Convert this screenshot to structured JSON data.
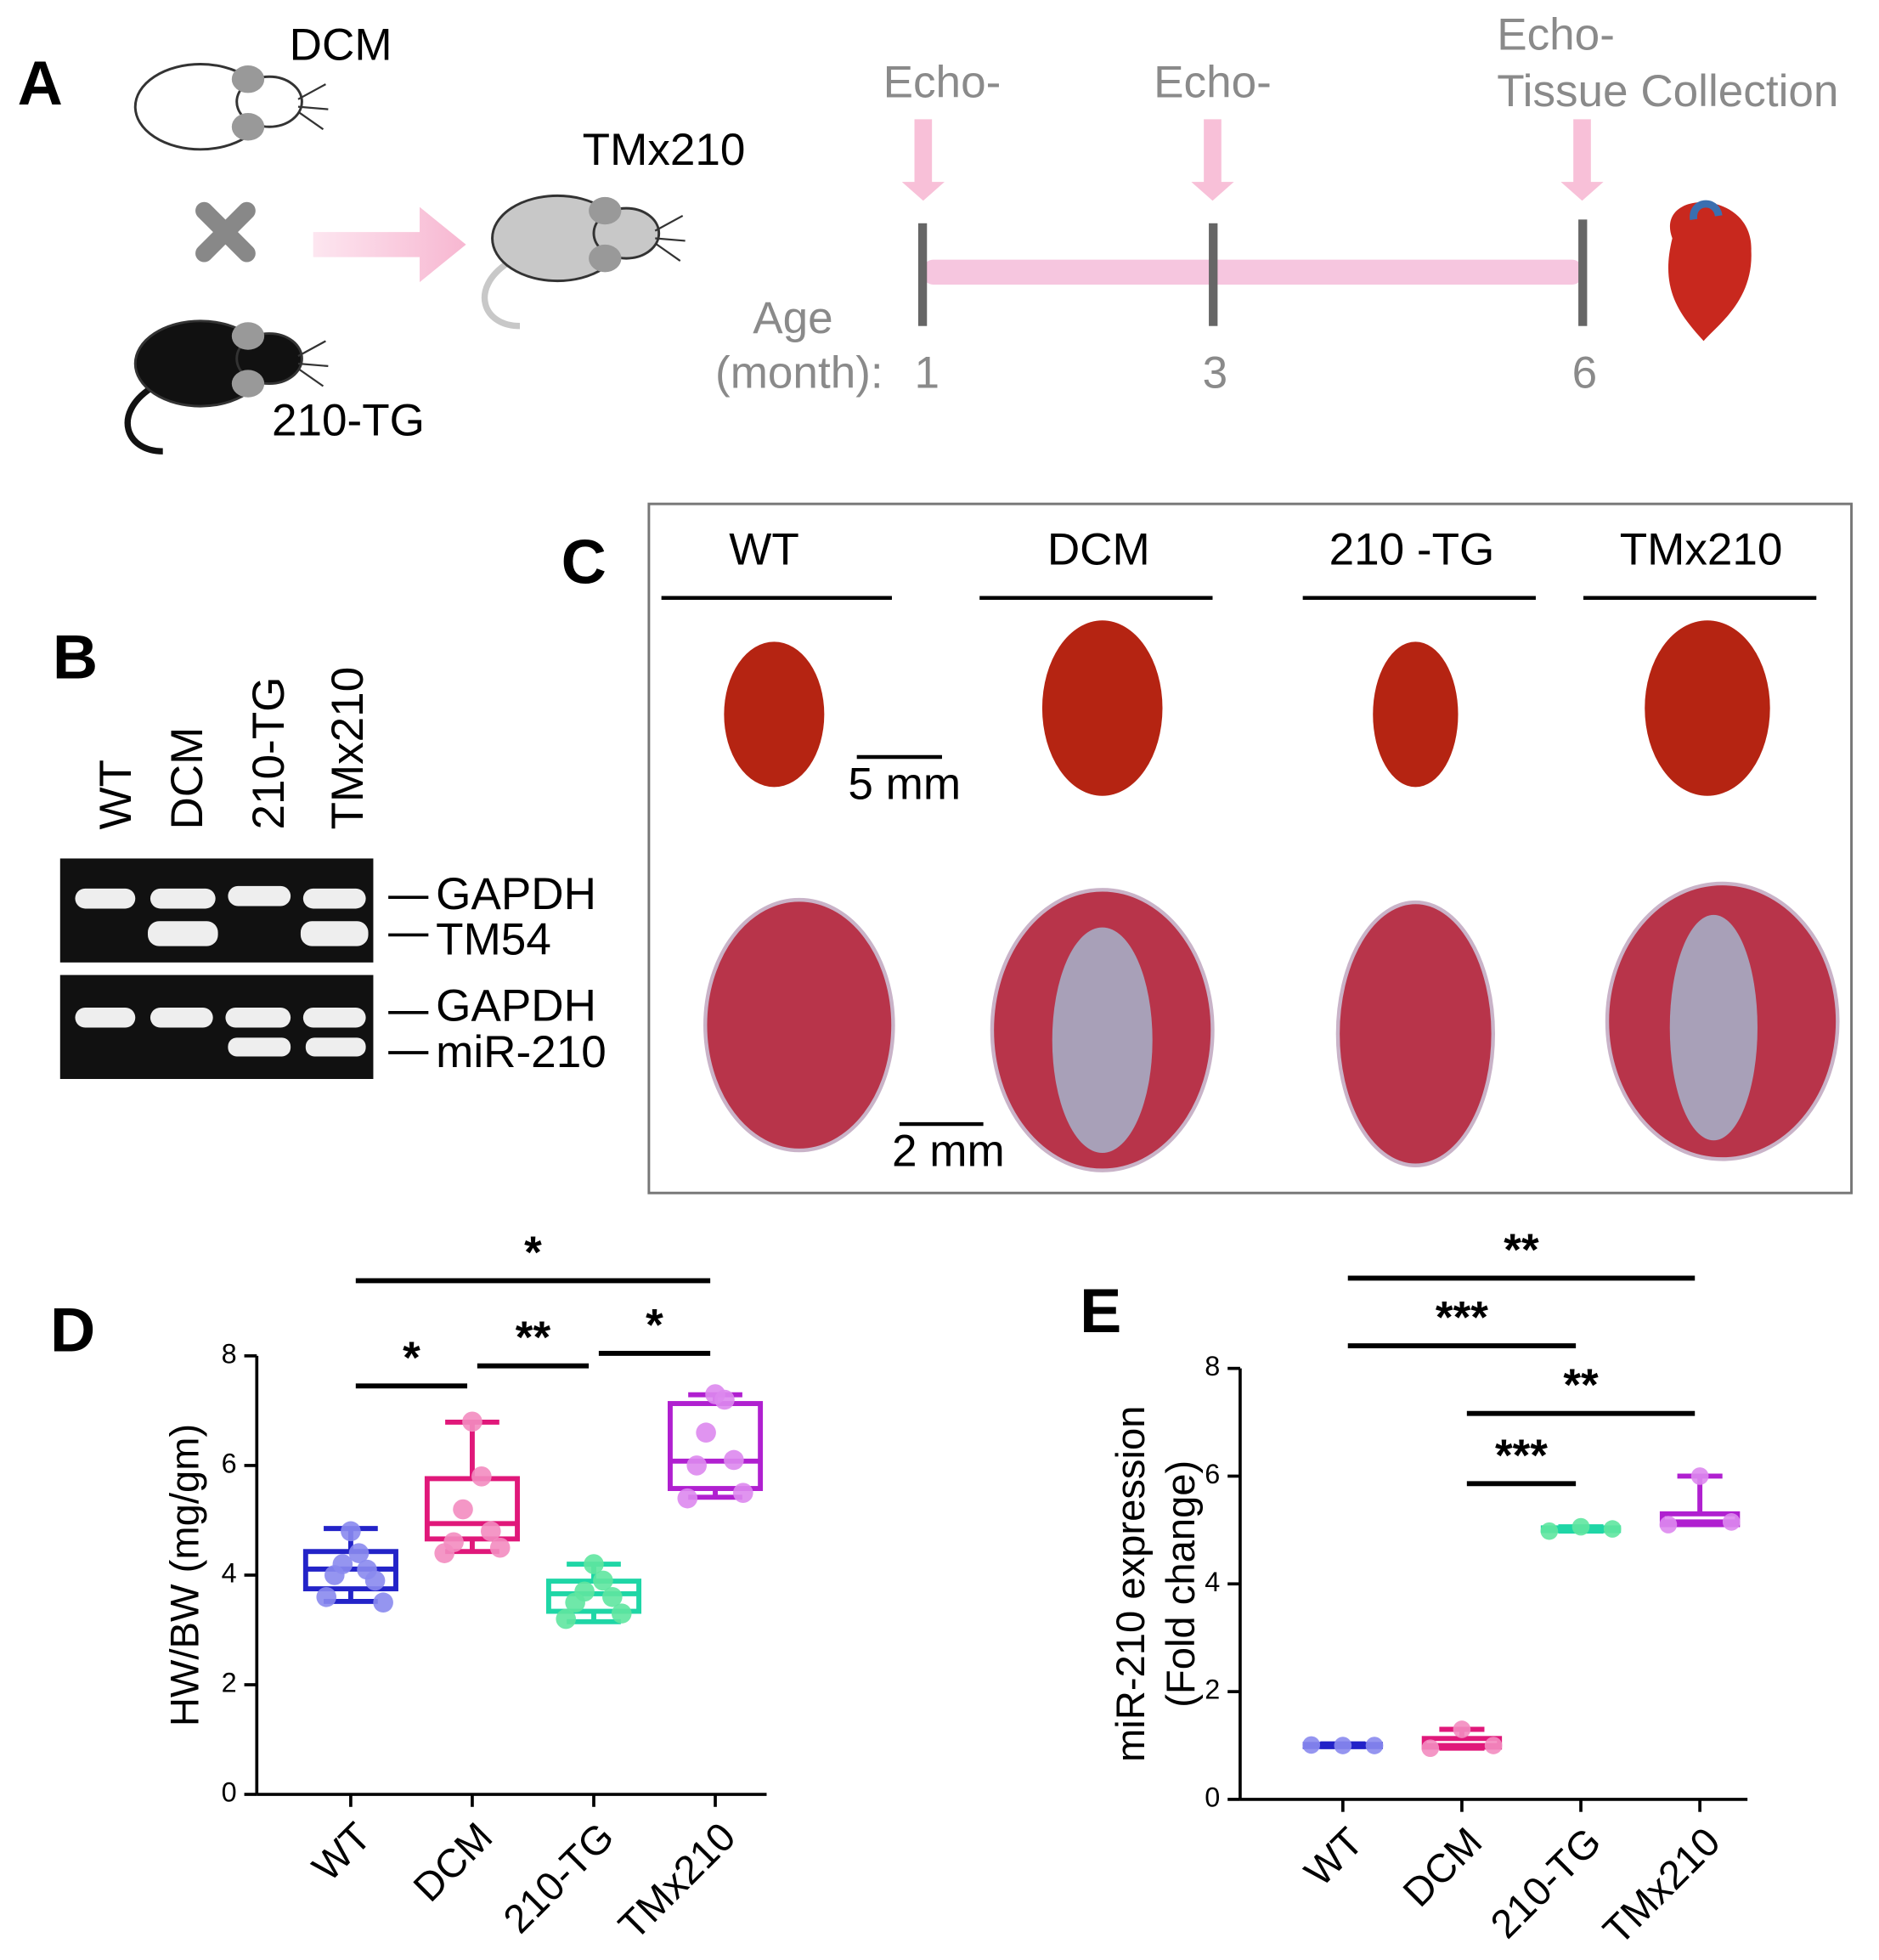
{
  "panel_labels": [
    "A",
    "B",
    "C",
    "D",
    "E"
  ],
  "panel_a": {
    "parents": [
      "DCM",
      "210-TG"
    ],
    "offspring": "TMx210",
    "echo_labels": [
      "Echo-",
      "Echo-",
      "Echo-"
    ],
    "final_label": "Tissue Collection",
    "age_label": [
      "Age",
      "(month):"
    ],
    "ages": [
      "1",
      "3",
      "6"
    ]
  },
  "panel_b": {
    "lanes": [
      "WT",
      "DCM",
      "210-TG",
      "TMx210"
    ],
    "gel_top_labels": [
      "GAPDH",
      "TM54"
    ],
    "gel_bottom_labels": [
      "GAPDH",
      "miR-210"
    ]
  },
  "panel_c": {
    "groups": [
      "WT",
      "DCM",
      "210 -TG",
      "TMx210"
    ],
    "scale_bars": [
      "5 mm",
      "2 mm"
    ]
  },
  "chart_data": [
    {
      "type": "box",
      "y_label": [
        "HW/BW (mg/gm)"
      ],
      "categories": [
        "WT",
        "DCM",
        "210-TG",
        "TMx210"
      ],
      "ylim": [
        0,
        8
      ],
      "yticks": [
        0,
        2,
        4,
        6,
        8
      ],
      "series": [
        {
          "color": "#2323c8",
          "point_color": "#8a8aee",
          "min": 3.52,
          "q1": 3.75,
          "median": 4.11,
          "q3": 4.43,
          "max": 4.85,
          "points": [
            4.8,
            4.4,
            4.2,
            4.1,
            4.0,
            3.9,
            3.6,
            3.5
          ]
        },
        {
          "color": "#e0187a",
          "point_color": "#f38cc0",
          "min": 4.43,
          "q1": 4.66,
          "median": 4.94,
          "q3": 5.76,
          "max": 6.79,
          "points": [
            6.8,
            5.8,
            5.2,
            4.8,
            4.6,
            4.5,
            4.4
          ]
        },
        {
          "color": "#1fd6a6",
          "point_color": "#5fe5a0",
          "min": 3.15,
          "q1": 3.34,
          "median": 3.66,
          "q3": 3.89,
          "max": 4.2,
          "points": [
            4.2,
            3.9,
            3.7,
            3.6,
            3.5,
            3.3,
            3.2
          ]
        },
        {
          "color": "#b020d0",
          "point_color": "#dd88ee",
          "min": 5.42,
          "q1": 5.58,
          "median": 6.08,
          "q3": 7.13,
          "max": 7.29,
          "points": [
            7.3,
            7.2,
            6.6,
            6.1,
            6.0,
            5.5,
            5.4
          ]
        }
      ],
      "significance": [
        {
          "groups": [
            "WT",
            "TMx210"
          ],
          "label": "*"
        },
        {
          "groups": [
            "WT",
            "DCM"
          ],
          "label": "*"
        },
        {
          "groups": [
            "DCM",
            "210-TG"
          ],
          "label": "**"
        },
        {
          "groups": [
            "210-TG",
            "TMx210"
          ],
          "label": "*"
        }
      ]
    },
    {
      "type": "box",
      "y_label": [
        "miR-210 expression",
        "(Fold change)"
      ],
      "categories": [
        "WT",
        "DCM",
        "210-TG",
        "TMx210"
      ],
      "ylim": [
        0,
        8
      ],
      "yticks": [
        0,
        2,
        4,
        6,
        8
      ],
      "series": [
        {
          "color": "#2323c8",
          "point_color": "#8a8aee",
          "min": 0.98,
          "q1": 0.98,
          "median": 1.0,
          "q3": 1.02,
          "max": 1.03,
          "points": [
            1.0,
            1.0,
            1.01
          ]
        },
        {
          "color": "#e0187a",
          "point_color": "#f38cc0",
          "min": 0.95,
          "q1": 0.97,
          "median": 1.0,
          "q3": 1.13,
          "max": 1.3,
          "points": [
            1.3,
            1.0,
            0.95
          ]
        },
        {
          "color": "#1fd6a6",
          "point_color": "#5fe5a0",
          "min": 4.98,
          "q1": 4.99,
          "median": 5.02,
          "q3": 5.04,
          "max": 5.06,
          "points": [
            5.06,
            5.02,
            4.98
          ]
        },
        {
          "color": "#b020d0",
          "point_color": "#dd88ee",
          "min": 5.1,
          "q1": 5.1,
          "median": 5.15,
          "q3": 5.3,
          "max": 6.0,
          "points": [
            6.0,
            5.15,
            5.1
          ]
        }
      ],
      "significance": [
        {
          "groups": [
            "WT",
            "TMx210"
          ],
          "label": "**"
        },
        {
          "groups": [
            "WT",
            "210-TG"
          ],
          "label": "***"
        },
        {
          "groups": [
            "DCM",
            "TMx210"
          ],
          "label": "**"
        },
        {
          "groups": [
            "DCM",
            "210-TG"
          ],
          "label": "***"
        }
      ]
    }
  ]
}
